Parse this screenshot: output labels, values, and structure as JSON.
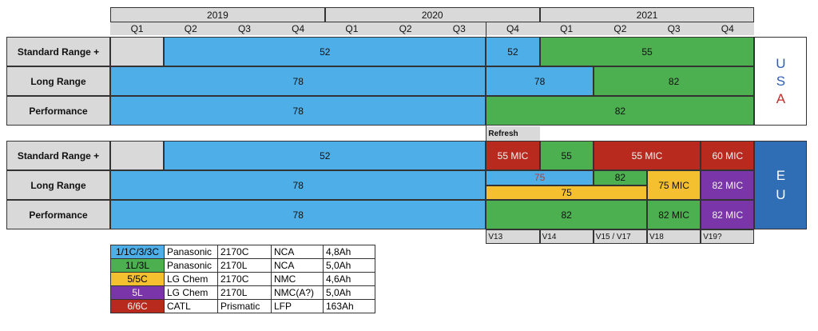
{
  "chart_data": {
    "type": "table",
    "years": [
      {
        "label": "2019"
      },
      {
        "label": "2020"
      },
      {
        "label": "2021"
      }
    ],
    "quarters": [
      "Q1",
      "Q2",
      "Q3",
      "Q4",
      "Q1",
      "Q2",
      "Q3",
      "Q4",
      "Q1",
      "Q2",
      "Q3",
      "Q4"
    ],
    "usa": {
      "region_letters": [
        "U",
        "S",
        "A"
      ],
      "rows": [
        {
          "label": "Standard Range +",
          "segments": [
            {
              "text": "",
              "color": "gray",
              "quarters": [
                1,
                1
              ]
            },
            {
              "text": "52",
              "color": "blue",
              "quarters": [
                2,
                7
              ]
            },
            {
              "text": "52",
              "color": "blue",
              "quarters": [
                8,
                8
              ]
            },
            {
              "text": "55",
              "color": "green",
              "quarters": [
                9,
                12
              ]
            }
          ]
        },
        {
          "label": "Long Range",
          "segments": [
            {
              "text": "78",
              "color": "blue",
              "quarters": [
                1,
                7
              ]
            },
            {
              "text": "78",
              "color": "blue",
              "quarters": [
                8,
                9
              ]
            },
            {
              "text": "82",
              "color": "green",
              "quarters": [
                10,
                12
              ]
            }
          ]
        },
        {
          "label": "Performance",
          "segments": [
            {
              "text": "78",
              "color": "blue",
              "quarters": [
                1,
                7
              ]
            },
            {
              "text": "82",
              "color": "green",
              "quarters": [
                8,
                12
              ]
            }
          ]
        }
      ]
    },
    "refresh_label": "Refresh",
    "eu": {
      "region_letters": [
        "E",
        "U"
      ],
      "rows": [
        {
          "label": "Standard Range +",
          "segments": [
            {
              "text": "",
              "color": "gray",
              "quarters": [
                1,
                1
              ]
            },
            {
              "text": "52",
              "color": "blue",
              "quarters": [
                2,
                7
              ]
            },
            {
              "text": "55 MIC",
              "color": "red",
              "quarters": [
                8,
                8
              ]
            },
            {
              "text": "55",
              "color": "green",
              "quarters": [
                9,
                9
              ]
            },
            {
              "text": "55 MIC",
              "color": "red",
              "quarters": [
                10,
                11
              ]
            },
            {
              "text": "60 MIC",
              "color": "red",
              "quarters": [
                12,
                12
              ]
            }
          ]
        },
        {
          "label": "Long Range",
          "segments": [
            {
              "text": "78",
              "color": "blue",
              "quarters": [
                1,
                7
              ]
            },
            {
              "text": "75",
              "color": "blue",
              "quarters": [
                8,
                9
              ],
              "part": "top"
            },
            {
              "text": "82",
              "color": "green",
              "quarters": [
                10,
                10
              ],
              "part": "top"
            },
            {
              "text": "75",
              "color": "yellow",
              "quarters": [
                8,
                10
              ],
              "part": "bottom"
            },
            {
              "text": "75 MIC",
              "color": "yellow",
              "quarters": [
                11,
                11
              ]
            },
            {
              "text": "82 MIC",
              "color": "purple",
              "quarters": [
                12,
                12
              ]
            }
          ]
        },
        {
          "label": "Performance",
          "segments": [
            {
              "text": "78",
              "color": "blue",
              "quarters": [
                1,
                7
              ]
            },
            {
              "text": "82",
              "color": "green",
              "quarters": [
                8,
                10
              ]
            },
            {
              "text": "82 MIC",
              "color": "green",
              "quarters": [
                11,
                11
              ]
            },
            {
              "text": "82 MIC",
              "color": "purple",
              "quarters": [
                12,
                12
              ]
            }
          ]
        }
      ]
    },
    "versions": [
      {
        "text": "V13",
        "quarters": [
          8,
          8
        ]
      },
      {
        "text": "V14",
        "quarters": [
          9,
          9
        ]
      },
      {
        "text": "V15 / V17",
        "quarters": [
          10,
          10
        ]
      },
      {
        "text": "V18",
        "quarters": [
          11,
          11
        ]
      },
      {
        "text": "V19?",
        "quarters": [
          12,
          12
        ]
      }
    ],
    "legend": [
      {
        "code": "1/1C/3/3C",
        "color": "blue",
        "supplier": "Panasonic",
        "cell": "2170C",
        "chemistry": "NCA",
        "capacity": "4,8Ah"
      },
      {
        "code": "1L/3L",
        "color": "green",
        "supplier": "Panasonic",
        "cell": "2170L",
        "chemistry": "NCA",
        "capacity": "5,0Ah"
      },
      {
        "code": "5/5C",
        "color": "yellow",
        "supplier": "LG Chem",
        "cell": "2170C",
        "chemistry": "NMC",
        "capacity": "4,6Ah"
      },
      {
        "code": "5L",
        "color": "purple",
        "supplier": "LG Chem",
        "cell": "2170L",
        "chemistry": "NMC(A?)",
        "capacity": "5,0Ah"
      },
      {
        "code": "6/6C",
        "color": "red",
        "supplier": "CATL",
        "cell": "Prismatic",
        "chemistry": "LFP",
        "capacity": "163Ah"
      }
    ],
    "colors": {
      "blue": "#4daee8",
      "green": "#4caf50",
      "red": "#b82a1e",
      "yellow": "#f5c030",
      "purple": "#7a35a8",
      "gray": "#d9d9d9",
      "usa_blue_letters": "#2f5fb3",
      "usa_red_letter": "#c0302a",
      "eu_panel": "#2f6db5"
    }
  }
}
